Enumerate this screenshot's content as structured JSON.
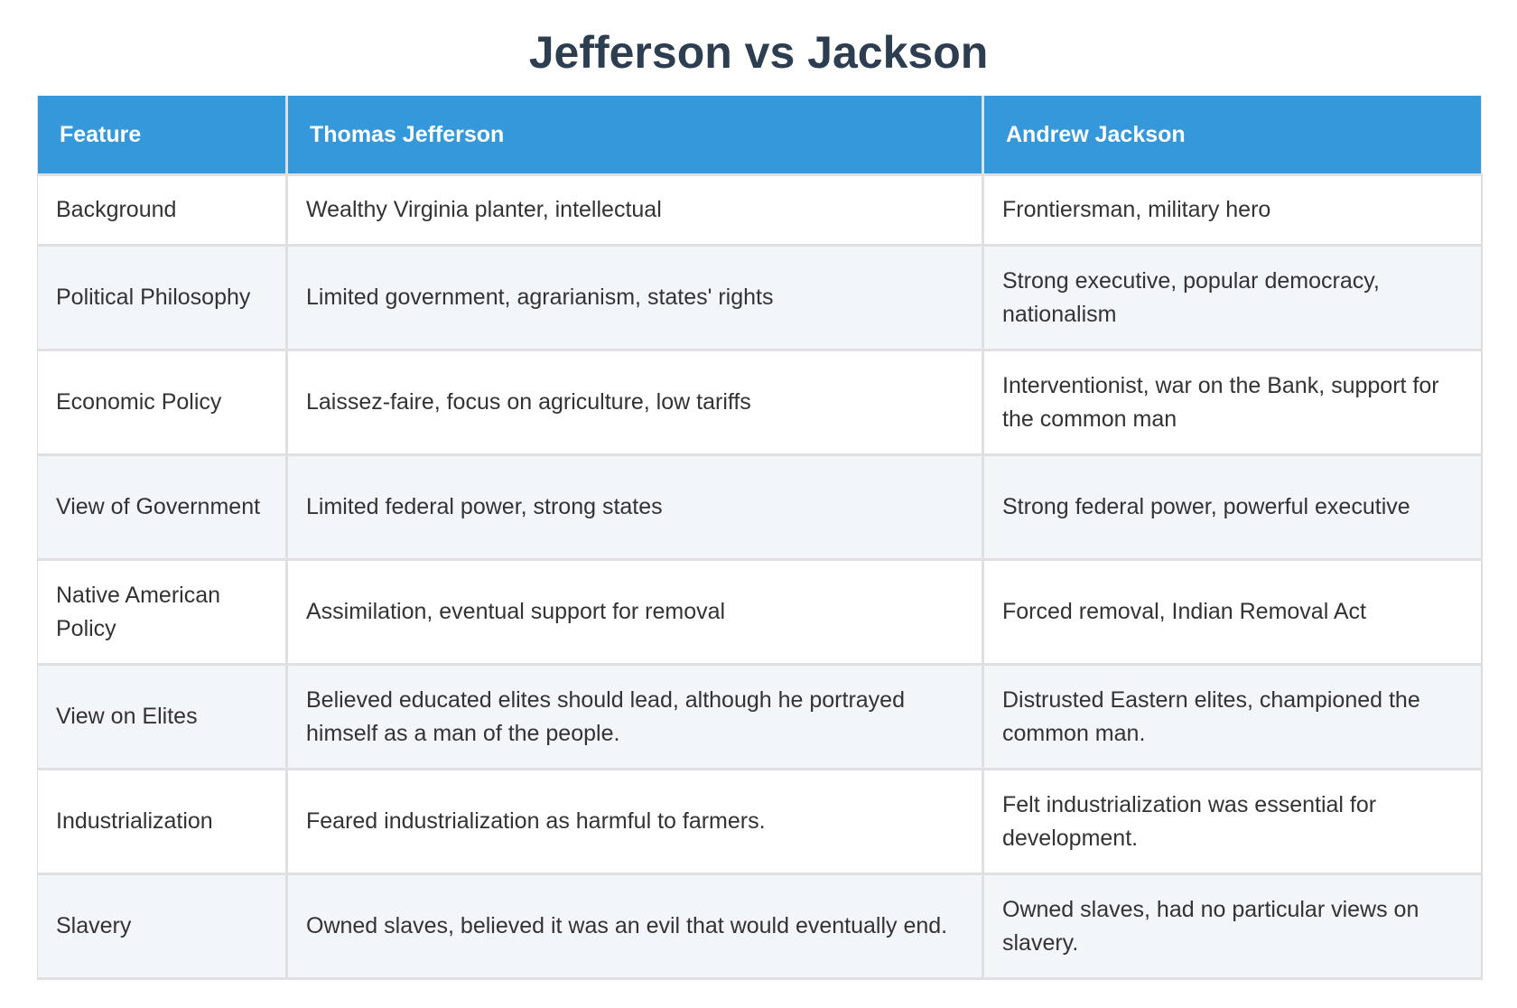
{
  "title": "Jefferson vs Jackson",
  "table": {
    "headers": [
      "Feature",
      "Thomas Jefferson",
      "Andrew Jackson"
    ],
    "rows": [
      [
        "Background",
        "Wealthy Virginia planter, intellectual",
        "Frontiersman, military hero"
      ],
      [
        "Political Philosophy",
        "Limited government, agrarianism, states' rights",
        "Strong executive, popular democracy, nationalism"
      ],
      [
        "Economic Policy",
        "Laissez-faire, focus on agriculture, low tariffs",
        "Interventionist, war on the Bank, support for the common man"
      ],
      [
        "View of Government",
        "Limited federal power, strong states",
        "Strong federal power, powerful executive"
      ],
      [
        "Native American Policy",
        "Assimilation, eventual support for removal",
        "Forced removal, Indian Removal Act"
      ],
      [
        "View on Elites",
        "Believed educated elites should lead, although he portrayed himself as a man of the people.",
        "Distrusted Eastern elites, championed the common man."
      ],
      [
        "Industrialization",
        "Feared industrialization as harmful to farmers.",
        "Felt industrialization was essential for development."
      ],
      [
        "Slavery",
        "Owned slaves, believed it was an evil that would eventually end.",
        "Owned slaves, had no particular views on slavery."
      ]
    ]
  },
  "colors": {
    "title": "#2c3e50",
    "header_bg": "#3498db",
    "header_text": "#ffffff",
    "row_alt_bg": "#f2f5fa",
    "border": "#e0e0e0"
  }
}
